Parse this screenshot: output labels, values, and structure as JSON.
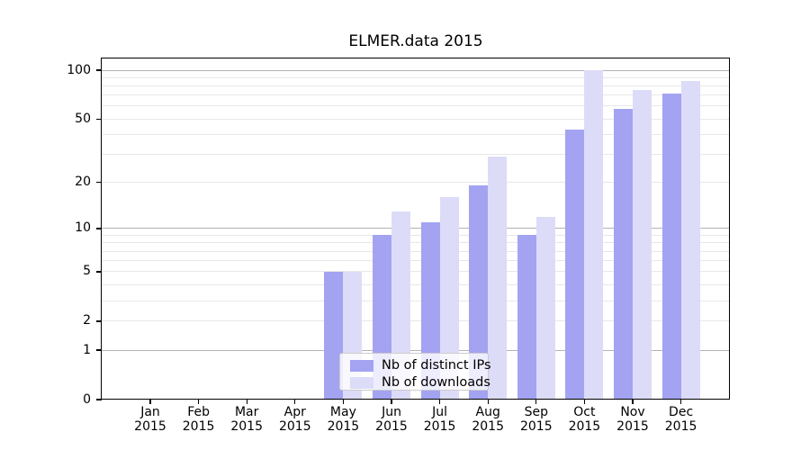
{
  "title": "ELMER.data 2015",
  "chart_data": {
    "type": "bar",
    "title": "ELMER.data 2015",
    "x_tick_labels": [
      {
        "month": "Jan",
        "year": "2015"
      },
      {
        "month": "Feb",
        "year": "2015"
      },
      {
        "month": "Mar",
        "year": "2015"
      },
      {
        "month": "Apr",
        "year": "2015"
      },
      {
        "month": "May",
        "year": "2015"
      },
      {
        "month": "Jun",
        "year": "2015"
      },
      {
        "month": "Jul",
        "year": "2015"
      },
      {
        "month": "Aug",
        "year": "2015"
      },
      {
        "month": "Sep",
        "year": "2015"
      },
      {
        "month": "Oct",
        "year": "2015"
      },
      {
        "month": "Nov",
        "year": "2015"
      },
      {
        "month": "Dec",
        "year": "2015"
      }
    ],
    "series": [
      {
        "name": "Nb of distinct IPs",
        "color": "#a3a3f2",
        "values": [
          0,
          0,
          0,
          0,
          5,
          9,
          11,
          19,
          9,
          43,
          58,
          72
        ]
      },
      {
        "name": "Nb of downloads",
        "color": "#dcdcf8",
        "values": [
          0,
          0,
          0,
          0,
          5,
          13,
          16,
          29,
          12,
          100,
          76,
          86
        ]
      }
    ],
    "y_axis": {
      "scale": "log1p",
      "range": [
        0,
        118
      ],
      "tick_values": [
        0,
        1,
        2,
        5,
        10,
        20,
        50,
        100
      ],
      "major_gridlines": [
        1,
        10,
        100
      ],
      "minor_gridlines": [
        2,
        3,
        4,
        5,
        6,
        7,
        8,
        9,
        20,
        30,
        40,
        50,
        60,
        70,
        80,
        90
      ]
    },
    "legend": {
      "position": "lower center",
      "entries": [
        "Nb of distinct IPs",
        "Nb of downloads"
      ]
    },
    "colors": {
      "grid_major": "#b3b3b3",
      "grid_minor": "#e8e8e8",
      "axis": "#000000",
      "background": "#ffffff",
      "text": "#000000"
    }
  }
}
